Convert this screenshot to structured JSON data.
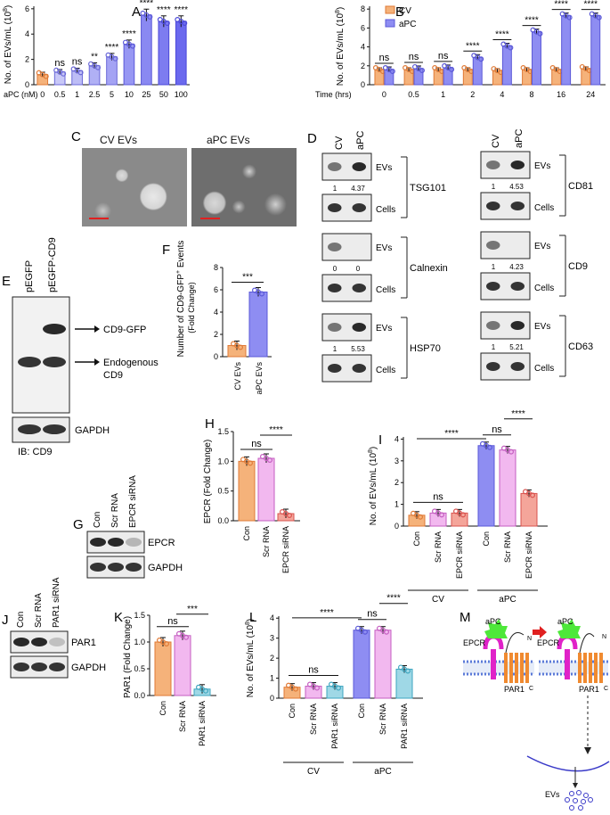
{
  "panel_letters": {
    "A": "A",
    "B": "B",
    "C": "C",
    "D": "D",
    "E": "E",
    "F": "F",
    "G": "G",
    "H": "H",
    "I": "I",
    "J": "J",
    "K": "K",
    "L": "L",
    "M": "M"
  },
  "colors": {
    "cv": "#f5b27a",
    "cv_edge": "#e07a36",
    "apc": "#8e8df2",
    "apc_edge": "#5b59d8",
    "pink": "#f2b8ef",
    "pink_edge": "#c45ec0",
    "red": "#f4a59a",
    "red_edge": "#d9534f",
    "teal": "#9fd8e6",
    "teal_edge": "#3ea6c0",
    "scale_bar": "#e02020"
  },
  "chart_data": [
    {
      "id": "A",
      "type": "bar",
      "ylabel_main": "No. of EVs/mL (10",
      "ylabel_sup": "8",
      "ylabel_end": ")",
      "xlabel": "aPC (nM)",
      "categories": [
        "0",
        "0.5",
        "1",
        "2.5",
        "5",
        "10",
        "25",
        "50",
        "100"
      ],
      "values": [
        0.8,
        1.0,
        1.1,
        1.5,
        2.2,
        3.2,
        5.5,
        5.0,
        5.0
      ],
      "sig": [
        "",
        "ns",
        "ns",
        "**",
        "****",
        "****",
        "****",
        "****",
        "****"
      ],
      "yticks": [
        "0",
        "2",
        "4",
        "6"
      ],
      "ylim": [
        0,
        6.2
      ]
    },
    {
      "id": "B",
      "type": "bar",
      "ylabel_main": "No. of EVs/mL (10",
      "ylabel_sup": "8",
      "ylabel_end": ")",
      "xlabel": "Time (hrs)",
      "categories": [
        "0",
        "0.5",
        "1",
        "2",
        "4",
        "8",
        "16",
        "24"
      ],
      "series": [
        {
          "name": "CV",
          "values": [
            1.6,
            1.6,
            1.6,
            1.6,
            1.5,
            1.6,
            1.6,
            1.7
          ]
        },
        {
          "name": "aPC",
          "values": [
            1.6,
            1.7,
            1.8,
            2.9,
            4.1,
            5.6,
            7.3,
            7.3
          ]
        }
      ],
      "sig": [
        "ns",
        "ns",
        "ns",
        "****",
        "****",
        "****",
        "****",
        "****"
      ],
      "yticks": [
        "0",
        "2",
        "4",
        "6",
        "8"
      ],
      "ylim": [
        0,
        8.3
      ]
    },
    {
      "id": "F",
      "type": "bar",
      "ylabel_main": "Number of CD9-GFP",
      "ylabel_sup": "+",
      "ylabel_end": " Events",
      "ylabel_sub": "(Fold Change)",
      "categories": [
        "CV EVs",
        "aPC EVs"
      ],
      "values": [
        1.0,
        5.8
      ],
      "sig": "***",
      "yticks": [
        "0",
        "2",
        "4",
        "6",
        "8"
      ],
      "ylim": [
        0,
        8
      ]
    },
    {
      "id": "H",
      "type": "bar",
      "ylabel": "EPCR (Fold Change)",
      "categories": [
        "Con",
        "Scr RNA",
        "EPCR siRNA"
      ],
      "values": [
        1.0,
        1.05,
        0.12
      ],
      "sig": [
        "ns",
        "****"
      ],
      "yticks": [
        "0.0",
        "0.5",
        "1.0",
        "1.5"
      ],
      "ylim": [
        0,
        1.5
      ]
    },
    {
      "id": "I",
      "type": "bar",
      "ylabel_main": "No. of EVs/mL (10",
      "ylabel_sup": "8",
      "ylabel_end": ")",
      "categories": [
        "Con",
        "Scr RNA",
        "EPCR siRNA",
        "Con",
        "Scr RNA",
        "EPCR siRNA"
      ],
      "groups": [
        "CV",
        "aPC"
      ],
      "values": [
        0.5,
        0.6,
        0.6,
        3.7,
        3.5,
        1.5
      ],
      "sig": [
        "ns",
        "ns",
        "****",
        "****"
      ],
      "yticks": [
        "0",
        "1",
        "2",
        "3",
        "4"
      ],
      "ylim": [
        0,
        4.1
      ]
    },
    {
      "id": "K",
      "type": "bar",
      "ylabel": "PAR1 (Fold Change)",
      "categories": [
        "Con",
        "Scr RNA",
        "PAR1 siRNA"
      ],
      "values": [
        1.0,
        1.12,
        0.12
      ],
      "sig": [
        "ns",
        "***"
      ],
      "yticks": [
        "0.0",
        "0.5",
        "1.0",
        "1.5"
      ],
      "ylim": [
        0,
        1.5
      ]
    },
    {
      "id": "L",
      "type": "bar",
      "ylabel_main": "No. of EVs/mL (10",
      "ylabel_sup": "8",
      "ylabel_end": ")",
      "categories": [
        "Con",
        "Scr RNA",
        "PAR1 siRNA",
        "Con",
        "Scr RNA",
        "PAR1 siRNA"
      ],
      "groups": [
        "CV",
        "aPC"
      ],
      "values": [
        0.55,
        0.6,
        0.6,
        3.4,
        3.4,
        1.45
      ],
      "sig": [
        "ns",
        "ns",
        "****",
        "****"
      ],
      "yticks": [
        "0",
        "1",
        "2",
        "3",
        "4"
      ],
      "ylim": [
        0,
        4.1
      ]
    }
  ],
  "panelC": {
    "labels": [
      "CV EVs",
      "aPC EVs"
    ]
  },
  "panelD": {
    "lanes": [
      "CV",
      "aPC"
    ],
    "left": [
      {
        "protein": "TSG101",
        "ev_label": "EVs",
        "cell_label": "Cells",
        "quant": [
          "1",
          "4.37"
        ]
      },
      {
        "protein": "Calnexin",
        "ev_label": "EVs",
        "cell_label": "Cells",
        "quant": [
          "0",
          "0"
        ]
      },
      {
        "protein": "HSP70",
        "ev_label": "EVs",
        "cell_label": "Cells",
        "quant": [
          "1",
          "5.53"
        ]
      }
    ],
    "right": [
      {
        "protein": "CD81",
        "ev_label": "EVs",
        "cell_label": "Cells",
        "quant": [
          "1",
          "4.53"
        ]
      },
      {
        "protein": "CD9",
        "ev_label": "EVs",
        "cell_label": "Cells",
        "quant": [
          "1",
          "4.23"
        ]
      },
      {
        "protein": "CD63",
        "ev_label": "EVs",
        "cell_label": "Cells",
        "quant": [
          "1",
          "5.21"
        ]
      }
    ]
  },
  "panelE": {
    "lanes": [
      "pEGFP",
      "pEGFP-CD9"
    ],
    "arrow1": "CD9-GFP",
    "arrow2a": "Endogenous",
    "arrow2b": "CD9",
    "loading": "GAPDH",
    "ib": "IB: CD9"
  },
  "panelG": {
    "lanes": [
      "Con",
      "Scr RNA",
      "EPCR siRNA"
    ],
    "blots": [
      "EPCR",
      "GAPDH"
    ]
  },
  "panelJ": {
    "lanes": [
      "Con",
      "Scr RNA",
      "PAR1 siRNA"
    ],
    "blots": [
      "PAR1",
      "GAPDH"
    ]
  },
  "panelM": {
    "apc": "aPC",
    "epcr": "EPCR",
    "par1": "PAR1",
    "n": "N",
    "c": "C",
    "evs": "EVs"
  }
}
